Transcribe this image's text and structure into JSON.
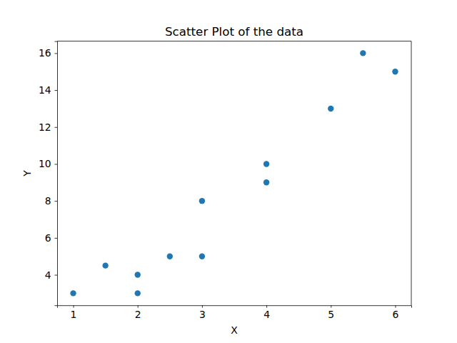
{
  "chart_data": {
    "type": "scatter",
    "title": "Scatter Plot of the data",
    "x_label": "X",
    "y_label": "Y",
    "x": [
      1,
      1.5,
      2,
      2,
      2.5,
      3,
      3,
      4,
      4,
      5,
      5.5,
      6
    ],
    "values": [
      3,
      4.5,
      4,
      3,
      5,
      8,
      5,
      10,
      9,
      13,
      16,
      15
    ],
    "color": "#1f77b4",
    "marker": "circle",
    "xlim": [
      0.75,
      6.25
    ],
    "ylim": [
      2.35,
      16.65
    ],
    "xticks": [
      1,
      2,
      3,
      4,
      5,
      6
    ],
    "yticks": [
      4,
      6,
      8,
      10,
      12,
      14,
      16
    ],
    "grid": false
  }
}
